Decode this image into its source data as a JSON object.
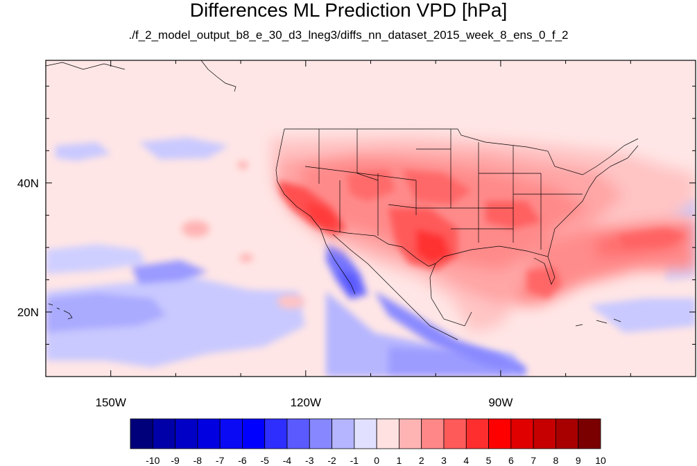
{
  "title": "Differences ML Prediction VPD [hPa]",
  "subtitle": "./f_2_model_output_b8_e_30_d3_lneg3/diffs_nn_dataset_2015_week_8_ens_0_f_2",
  "map": {
    "lon_range": [
      -160,
      -60
    ],
    "lat_range": [
      10,
      59
    ],
    "lon_ticks": [
      {
        "value": -150,
        "label": "150W"
      },
      {
        "value": -120,
        "label": "120W"
      },
      {
        "value": -90,
        "label": "90W"
      }
    ],
    "lat_ticks": [
      {
        "value": 40,
        "label": "40N"
      },
      {
        "value": 20,
        "label": "20N"
      }
    ]
  },
  "colorbar": {
    "labels": [
      "-10",
      "-9",
      "-8",
      "-7",
      "-6",
      "-5",
      "-4",
      "-3",
      "-2",
      "-1",
      "0",
      "1",
      "2",
      "3",
      "4",
      "5",
      "6",
      "7",
      "8",
      "9",
      "10"
    ],
    "colors": [
      "#00007a",
      "#0000a8",
      "#0000c6",
      "#0000e0",
      "#0a0af5",
      "#0000ff",
      "#2e2eff",
      "#5a5aff",
      "#8787ff",
      "#b4b4ff",
      "#e1e1ff",
      "#ffe1e1",
      "#ffb4b4",
      "#ff8787",
      "#ff5a5a",
      "#ff2e2e",
      "#ff0000",
      "#e00000",
      "#c60000",
      "#a80000",
      "#7a0000"
    ]
  }
}
